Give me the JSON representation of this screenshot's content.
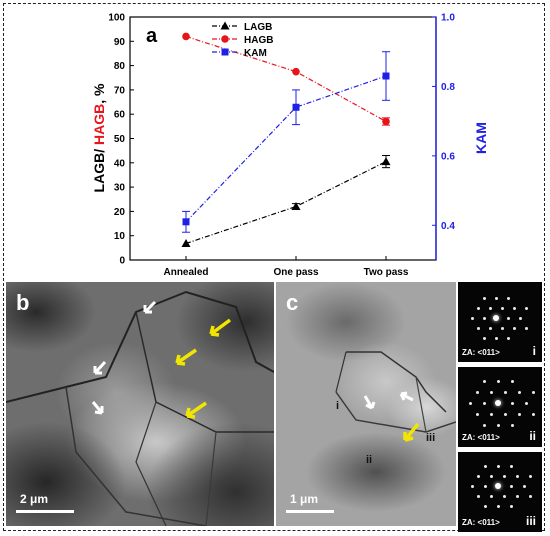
{
  "chart_data": {
    "type": "line",
    "panel_label": "a",
    "categories": [
      "Annealed",
      "One pass",
      "Two pass"
    ],
    "ylabel_left_parts": [
      "LAGB/ ",
      "HAGB",
      ", %"
    ],
    "ylabel_right": "KAM",
    "ylim_left": [
      0,
      100
    ],
    "ylim_right": [
      0.3,
      1.0
    ],
    "yticks_left": [
      "0",
      "10",
      "20",
      "30",
      "40",
      "50",
      "60",
      "70",
      "80",
      "90",
      "100"
    ],
    "yticks_right": [
      "0.4",
      "0.6",
      "0.8",
      "1.0"
    ],
    "legend_position": "top-center",
    "series": [
      {
        "name": "LAGB",
        "axis": "left",
        "values": [
          6.8,
          22,
          40.5
        ],
        "error": [
          0,
          1.2,
          2.5
        ],
        "color": "#000000",
        "marker": "triangle"
      },
      {
        "name": "HAGB",
        "axis": "left",
        "values": [
          92,
          77.5,
          57
        ],
        "error": [
          0,
          0,
          1.5
        ],
        "color": "#e8141b",
        "marker": "circle"
      },
      {
        "name": "KAM",
        "axis": "right",
        "values": [
          0.41,
          0.74,
          0.83
        ],
        "error": [
          0.03,
          0.05,
          0.07
        ],
        "color": "#1f20e6",
        "marker": "square"
      }
    ]
  },
  "panels": {
    "b": {
      "label": "b",
      "scale": "2 μm"
    },
    "c": {
      "label": "c",
      "scale": "1 μm",
      "markers": [
        "i",
        "ii",
        "iii"
      ]
    }
  },
  "saed": [
    {
      "za": "ZA: <011>",
      "id": "i"
    },
    {
      "za": "ZA: <011>",
      "id": "ii"
    },
    {
      "za": "ZA: <011>",
      "id": "iii"
    }
  ],
  "colors": {
    "lagb": "#000000",
    "hagb": "#e8141b",
    "kam": "#1f20e6",
    "arrow_white": "#ffffff",
    "arrow_yellow": "#f2e600"
  }
}
